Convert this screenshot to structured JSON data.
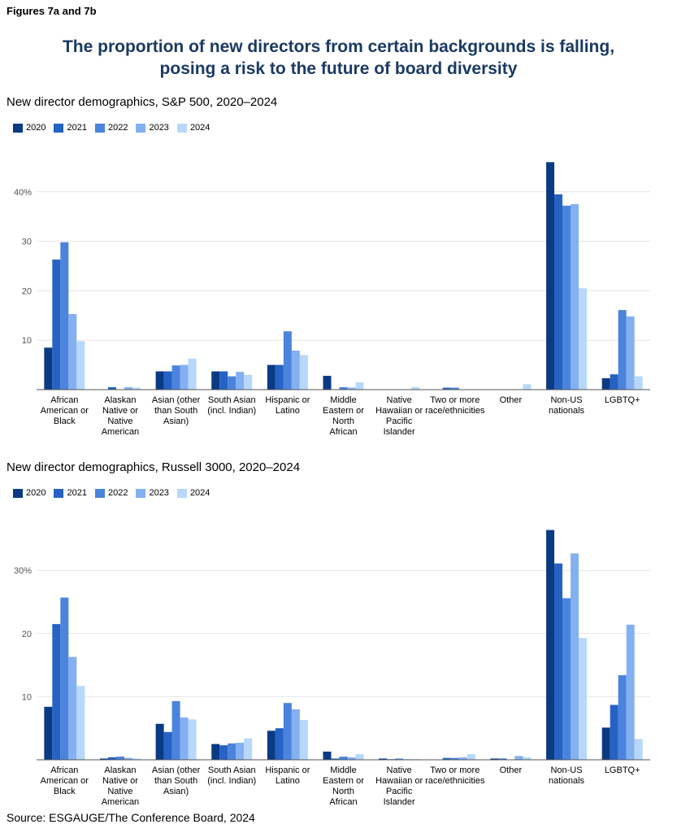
{
  "figure_label": "Figures 7a and 7b",
  "title_line1": "The proportion of new directors from certain backgrounds is falling,",
  "title_line2": "posing a risk to the future of board diversity",
  "source": "Source: ESGAUGE/The Conference Board, 2024",
  "colors": [
    "#0b3a84",
    "#2562c4",
    "#4a84dc",
    "#84b0f2",
    "#b7d8fa"
  ],
  "chart_data": [
    {
      "type": "bar",
      "title": "New director demographics, S&P 500, 2020–2024",
      "categories": [
        [
          "African",
          "American or",
          "Black"
        ],
        [
          "Alaskan",
          "Native or",
          "Native",
          "American"
        ],
        [
          "Asian (other",
          "than South",
          "Asian)"
        ],
        [
          "South Asian",
          "(incl. Indian)"
        ],
        [
          "Hispanic or",
          "Latino"
        ],
        [
          "Middle",
          "Eastern or",
          "North",
          "African"
        ],
        [
          "Native",
          "Hawaiian or",
          "Pacific",
          "Islander"
        ],
        [
          "Two or more",
          "race/ethnicities"
        ],
        [
          "Other"
        ],
        [
          "Non-US",
          "nationals"
        ],
        [
          "LGBTQ+"
        ]
      ],
      "series": [
        {
          "name": "2020",
          "values": [
            8.5,
            0,
            3.7,
            3.7,
            5.0,
            2.8,
            0,
            0,
            0,
            46.0,
            2.3
          ]
        },
        {
          "name": "2021",
          "values": [
            26.3,
            0.5,
            3.7,
            3.7,
            5.0,
            0,
            0,
            0.4,
            0,
            39.5,
            3.1
          ]
        },
        {
          "name": "2022",
          "values": [
            29.8,
            0,
            4.9,
            2.7,
            11.8,
            0.5,
            0,
            0.4,
            0,
            37.2,
            16.1
          ]
        },
        {
          "name": "2023",
          "values": [
            15.3,
            0.5,
            5.0,
            3.6,
            7.9,
            0.4,
            0,
            0,
            0,
            37.5,
            14.8
          ]
        },
        {
          "name": "2024",
          "values": [
            9.8,
            0.4,
            6.3,
            3.0,
            7.0,
            1.5,
            0.5,
            0,
            1.1,
            20.5,
            2.7
          ]
        }
      ],
      "yticks": [
        10,
        20,
        30,
        40
      ],
      "ytick_labels": [
        "10",
        "20",
        "30",
        "40%"
      ],
      "ylim": [
        0,
        50
      ],
      "legend_position": "top-left",
      "grid": true
    },
    {
      "type": "bar",
      "title": "New director demographics, Russell 3000, 2020–2024",
      "categories": [
        [
          "African",
          "American or",
          "Black"
        ],
        [
          "Alaskan",
          "Native or",
          "Native",
          "American"
        ],
        [
          "Asian (other",
          "than South",
          "Asian)"
        ],
        [
          "South Asian",
          "(incl. Indian)"
        ],
        [
          "Hispanic or",
          "Latino"
        ],
        [
          "Middle",
          "Eastern or",
          "North",
          "African"
        ],
        [
          "Native",
          "Hawaiian or",
          "Pacific",
          "Islander"
        ],
        [
          "Two or more",
          "race/ethnicities"
        ],
        [
          "Other"
        ],
        [
          "Non-US",
          "nationals"
        ],
        [
          "LGBTQ+"
        ]
      ],
      "series": [
        {
          "name": "2020",
          "values": [
            8.4,
            0.2,
            5.7,
            2.5,
            4.6,
            1.3,
            0.2,
            0,
            0.2,
            36.4,
            5.1
          ]
        },
        {
          "name": "2021",
          "values": [
            21.5,
            0.4,
            4.4,
            2.3,
            5.0,
            0.2,
            0.1,
            0.3,
            0.2,
            31.1,
            8.7
          ]
        },
        {
          "name": "2022",
          "values": [
            25.7,
            0.5,
            9.3,
            2.6,
            9.0,
            0.5,
            0.2,
            0.3,
            0,
            25.6,
            13.4
          ]
        },
        {
          "name": "2023",
          "values": [
            16.3,
            0.3,
            6.7,
            2.7,
            8.0,
            0.4,
            0.1,
            0.4,
            0.6,
            32.7,
            21.4
          ]
        },
        {
          "name": "2024",
          "values": [
            11.7,
            0.2,
            6.4,
            3.4,
            6.3,
            0.9,
            0.1,
            0.9,
            0.4,
            19.3,
            3.3
          ]
        }
      ],
      "yticks": [
        10,
        20,
        30
      ],
      "ytick_labels": [
        "10",
        "20",
        "30%"
      ],
      "ylim": [
        0,
        37.5
      ],
      "legend_position": "top-left",
      "grid": true
    }
  ]
}
